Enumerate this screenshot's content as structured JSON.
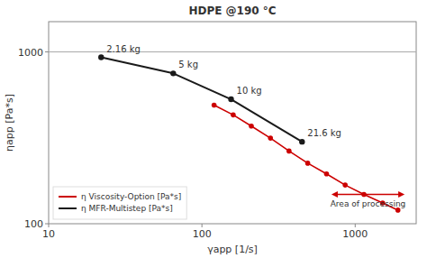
{
  "chart_data": {
    "type": "line",
    "title": "HDPE @190 °C",
    "x_label": "γapp [1/s]",
    "y_label": "ηapp [Pa*s]",
    "log": true,
    "grid": false,
    "legend": "lower left",
    "xlim": [
      10,
      2500
    ],
    "ylim": [
      100,
      1500
    ],
    "xticks": [
      10,
      100,
      1000
    ],
    "yticks": [
      100,
      1000
    ],
    "series": [
      {
        "name": "η Viscosity-Option [Pa*s]",
        "color": "#cc0000",
        "marker": "circle",
        "x": [
          120,
          160,
          210,
          280,
          370,
          490,
          650,
          860,
          1140,
          1510,
          1900
        ],
        "values": [
          490,
          430,
          370,
          315,
          265,
          225,
          195,
          168,
          148,
          132,
          120
        ]
      },
      {
        "name": "η MFR-Multistep [Pa*s]",
        "color": "#1a1a1a",
        "marker": "circle",
        "x": [
          22,
          65,
          155,
          450
        ],
        "values": [
          930,
          750,
          530,
          300
        ]
      }
    ],
    "annotations": [
      {
        "text": "2.16 kg",
        "x": 22,
        "y": 930
      },
      {
        "text": "5 kg",
        "x": 65,
        "y": 750
      },
      {
        "text": "10 kg",
        "x": 155,
        "y": 530
      },
      {
        "text": "21.6 kg",
        "x": 450,
        "y": 300
      }
    ],
    "span": {
      "label": "Area of processing",
      "x_start": 700,
      "x_end": 2100,
      "y": 148,
      "color": "#cc0000"
    },
    "reference_line": {
      "y": 1000,
      "color": "#aaaaaa"
    }
  }
}
